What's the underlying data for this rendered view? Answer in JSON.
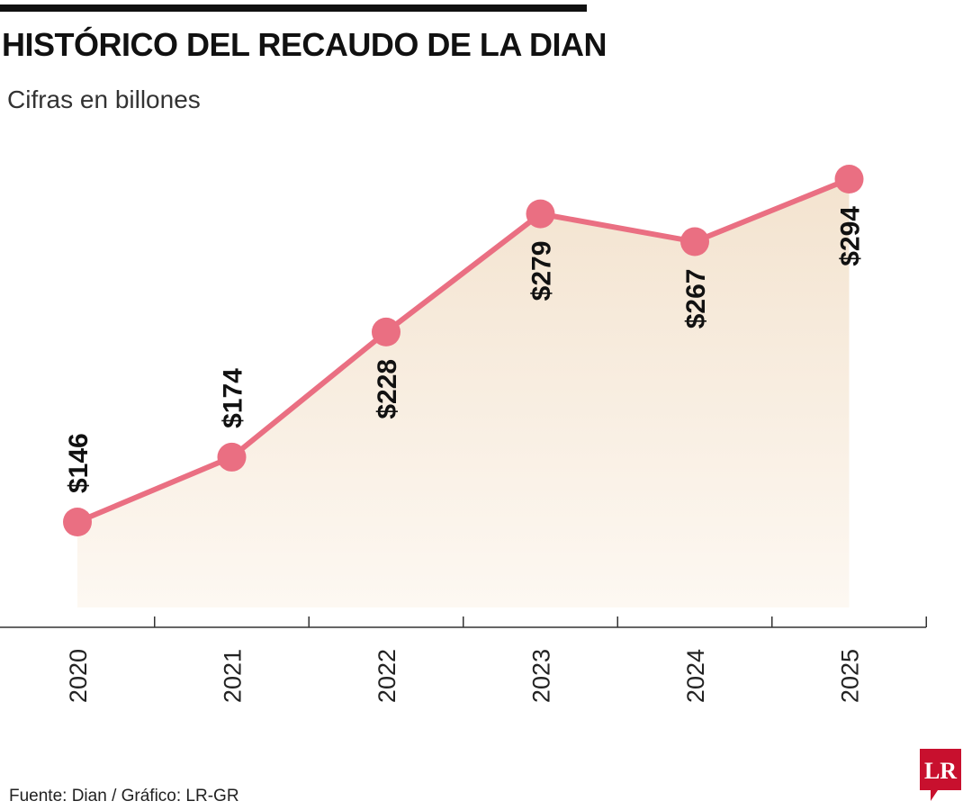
{
  "header": {
    "title": "HISTÓRICO DEL RECAUDO DE LA DIAN",
    "subtitle": "Cifras en billones"
  },
  "footer": {
    "source": "Fuente: Dian / Gráfico: LR-GR",
    "logo_text": "LR"
  },
  "colors": {
    "line": "#ea6f82",
    "marker": "#ea6f82",
    "fill_top": "#f3e3cf",
    "fill_bottom": "#fdf8f2",
    "axis": "#333333",
    "logo": "#c8102e"
  },
  "chart_data": {
    "type": "line",
    "title": "HISTÓRICO DEL RECAUDO DE LA DIAN",
    "subtitle": "Cifras en billones",
    "categories": [
      "2020",
      "2021",
      "2022",
      "2023",
      "2024",
      "2025"
    ],
    "values": [
      146,
      174,
      228,
      279,
      267,
      294
    ],
    "data_labels": [
      "$146",
      "$174",
      "$228",
      "$279",
      "$267",
      "$294"
    ],
    "xlabel": "",
    "ylabel": "",
    "ylim": [
      110,
      310
    ],
    "grid": false,
    "area_fill": true,
    "x_labels_rotated": true,
    "data_labels_rotated": true
  }
}
